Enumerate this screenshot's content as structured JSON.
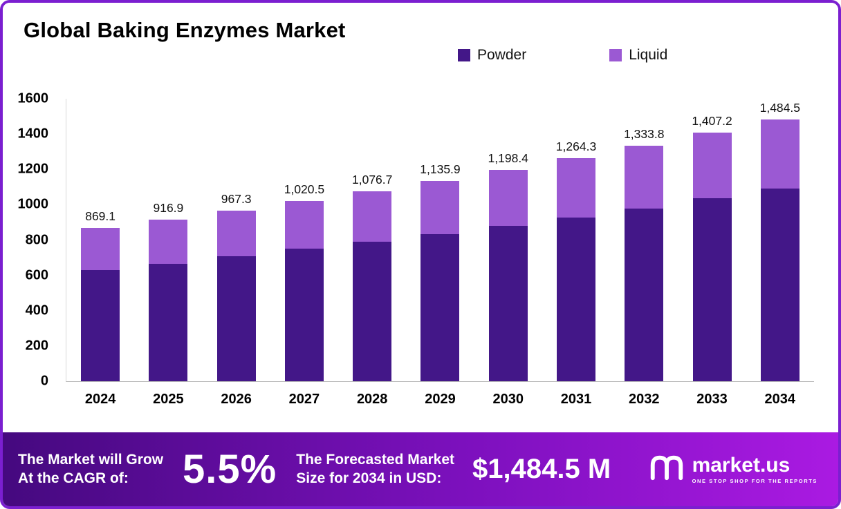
{
  "title": "Global Baking Enzymes Market",
  "legend": [
    {
      "label": "Powder",
      "color": "#431788"
    },
    {
      "label": "Liquid",
      "color": "#9b59d3"
    }
  ],
  "chart_data": {
    "type": "bar",
    "stacked": true,
    "title": "Global Baking Enzymes Market",
    "categories": [
      "2024",
      "2025",
      "2026",
      "2027",
      "2028",
      "2029",
      "2030",
      "2031",
      "2032",
      "2033",
      "2034"
    ],
    "series": [
      {
        "name": "Powder",
        "color": "#431788",
        "values": [
          630,
          665,
          710,
          750,
          790,
          835,
          880,
          928,
          980,
          1035,
          1090
        ]
      },
      {
        "name": "Liquid",
        "color": "#9b59d3",
        "values": [
          239.1,
          251.9,
          257.3,
          270.5,
          286.7,
          300.9,
          318.4,
          336.3,
          353.8,
          372.2,
          394.5
        ]
      }
    ],
    "totals": [
      869.1,
      916.9,
      967.3,
      1020.5,
      1076.7,
      1135.9,
      1198.4,
      1264.3,
      1333.8,
      1407.2,
      1484.5
    ],
    "total_labels": [
      "869.1",
      "916.9",
      "967.3",
      "1,020.5",
      "1,076.7",
      "1,135.9",
      "1,198.4",
      "1,264.3",
      "1,333.8",
      "1,407.2",
      "1,484.5"
    ],
    "ylim": [
      0,
      1600
    ],
    "yticks": [
      0,
      200,
      400,
      600,
      800,
      1000,
      1200,
      1400,
      1600
    ],
    "legend_position": "top",
    "grid": false
  },
  "banner": {
    "cagr_line1": "The Market will Grow",
    "cagr_line2": "At the CAGR of:",
    "cagr_value": "5.5%",
    "forecast_line1": "The Forecasted Market",
    "forecast_line2": "Size for 2034 in USD:",
    "forecast_value": "$1,484.5 M",
    "logo_name": "market.us",
    "logo_tagline": "ONE STOP SHOP FOR THE REPORTS",
    "gradient_left": "#45097f",
    "gradient_right": "#aa1ae2"
  }
}
